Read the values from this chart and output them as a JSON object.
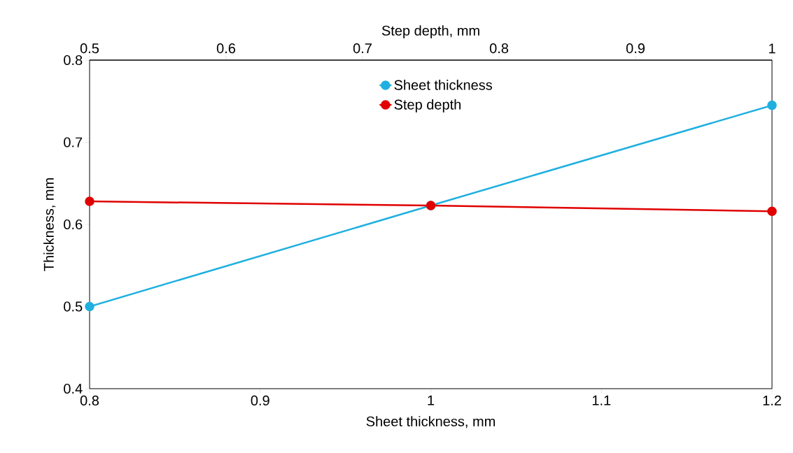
{
  "chart_data": {
    "type": "line",
    "xlabel": "Sheet thickness, mm",
    "x2label": "Step depth, mm",
    "ylabel": "Thickness, mm",
    "xlim": [
      0.8,
      1.2
    ],
    "xticks": [
      0.8,
      0.9,
      1,
      1.1,
      1.2
    ],
    "x2lim": [
      0.5,
      1
    ],
    "x2ticks": [
      0.5,
      0.6,
      0.7,
      0.8,
      0.9,
      1
    ],
    "ylim": [
      0.4,
      0.8
    ],
    "yticks": [
      0.4,
      0.5,
      0.6,
      0.7,
      0.8
    ],
    "marker": "circle",
    "line_style": "solid",
    "legend": "top right",
    "series": [
      {
        "name": "Sheet thickness",
        "color": "#1fb0e0",
        "x": [
          0.8,
          1,
          1.2
        ],
        "values": [
          0.5,
          0.623,
          0.745
        ]
      },
      {
        "name": "Step depth",
        "color": "#e00000",
        "axis": "x2",
        "x": [
          0.5,
          0.75,
          1
        ],
        "values": [
          0.628,
          0.623,
          0.616
        ]
      }
    ]
  }
}
